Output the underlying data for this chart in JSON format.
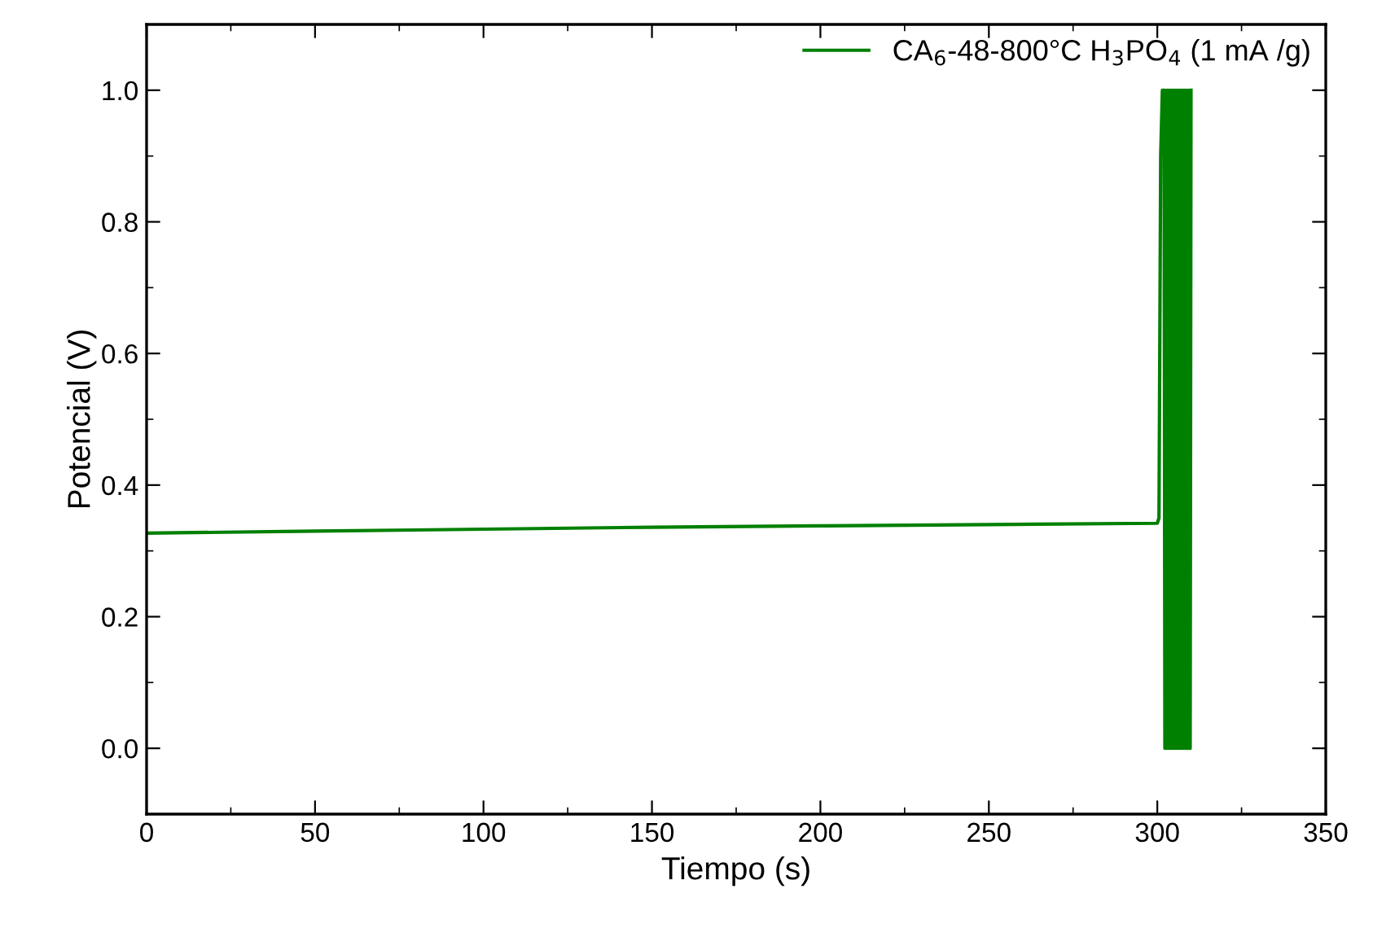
{
  "chart_data": {
    "type": "line",
    "xlabel": "Tiempo (s)",
    "ylabel": "Potencial (V)",
    "xlim": [
      0,
      350
    ],
    "xticks": [
      0,
      50,
      100,
      150,
      200,
      250,
      300,
      350
    ],
    "ylim": [
      -0.1,
      1.1
    ],
    "yticks": [
      {
        "value": 0.0,
        "label": "0.0"
      },
      {
        "value": 0.2,
        "label": "0.2"
      },
      {
        "value": 0.4,
        "label": "0.4"
      },
      {
        "value": 0.6,
        "label": "0.6"
      },
      {
        "value": 0.8,
        "label": "0.8"
      },
      {
        "value": 1.0,
        "label": "1.0"
      }
    ],
    "grid": false,
    "legend": "top right",
    "series": [
      {
        "name": "CA$_{6}$-48-800°C H$_{3}$PO$_{4}$ (1 mA /g)",
        "color": "#008000",
        "x": [
          0,
          50,
          100,
          150,
          200,
          250,
          300,
          300.5,
          301,
          301.5,
          302,
          302.25,
          302.5,
          302.75,
          303,
          303.25,
          303.5,
          303.75,
          304,
          304.25,
          304.5,
          304.75,
          305,
          305.25,
          305.5,
          305.75,
          306,
          306.25,
          306.5,
          306.75,
          307,
          307.25,
          307.5,
          307.75,
          308,
          308.25,
          308.5,
          308.75,
          309,
          309.25,
          309.5,
          309.75,
          310
        ],
        "values": [
          0.327,
          0.33,
          0.333,
          0.336,
          0.338,
          0.34,
          0.342,
          0.35,
          0.9,
          1.0,
          1.0,
          0,
          1.0,
          0,
          1.0,
          0,
          1.0,
          0,
          1.0,
          0,
          1.0,
          0,
          1.0,
          0,
          1.0,
          0,
          1.0,
          0,
          1.0,
          0,
          1.0,
          0,
          1.0,
          0,
          1.0,
          0,
          1.0,
          0,
          1.0,
          0,
          1.0,
          0,
          1.0
        ]
      }
    ]
  }
}
